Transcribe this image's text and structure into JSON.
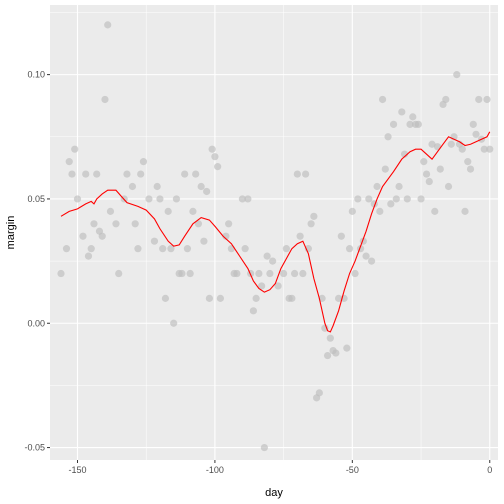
{
  "chart_data": {
    "type": "scatter",
    "title": "",
    "xlabel": "day",
    "ylabel": "margin",
    "xlim": [
      -160,
      3
    ],
    "ylim": [
      -0.055,
      0.128
    ],
    "x_ticks": [
      -150,
      -100,
      -50,
      0
    ],
    "x_tick_labels": [
      "-150",
      "-100",
      "-50",
      "0"
    ],
    "y_ticks": [
      -0.05,
      0.0,
      0.05,
      0.1
    ],
    "y_tick_labels": [
      "-0.05",
      "0.00",
      "0.05",
      "0.10"
    ],
    "grid": true,
    "legend": "none",
    "colors": {
      "panel": "#ebebeb",
      "grid_major": "#ffffff",
      "points": "#bdbdbd",
      "smooth_line": "#ff0000",
      "tick_text": "#4d4d4d",
      "axis_title": "#000000"
    },
    "series": [
      {
        "type": "scatter",
        "points": [
          [
            -156,
            0.02
          ],
          [
            -154,
            0.03
          ],
          [
            -153,
            0.065
          ],
          [
            -152,
            0.06
          ],
          [
            -151,
            0.07
          ],
          [
            -150,
            0.05
          ],
          [
            -148,
            0.035
          ],
          [
            -147,
            0.06
          ],
          [
            -146,
            0.027
          ],
          [
            -145,
            0.03
          ],
          [
            -144,
            0.04
          ],
          [
            -143,
            0.06
          ],
          [
            -142,
            0.037
          ],
          [
            -141,
            0.035
          ],
          [
            -140,
            0.09
          ],
          [
            -139,
            0.12
          ],
          [
            -138,
            0.045
          ],
          [
            -136,
            0.04
          ],
          [
            -135,
            0.02
          ],
          [
            -133,
            0.05
          ],
          [
            -132,
            0.06
          ],
          [
            -130,
            0.055
          ],
          [
            -129,
            0.04
          ],
          [
            -128,
            0.03
          ],
          [
            -127,
            0.06
          ],
          [
            -126,
            0.065
          ],
          [
            -124,
            0.05
          ],
          [
            -122,
            0.033
          ],
          [
            -121,
            0.055
          ],
          [
            -120,
            0.05
          ],
          [
            -119,
            0.03
          ],
          [
            -118,
            0.01
          ],
          [
            -117,
            0.045
          ],
          [
            -116,
            0.03
          ],
          [
            -115,
            0.0
          ],
          [
            -114,
            0.05
          ],
          [
            -113,
            0.02
          ],
          [
            -112,
            0.02
          ],
          [
            -111,
            0.06
          ],
          [
            -110,
            0.03
          ],
          [
            -109,
            0.02
          ],
          [
            -108,
            0.045
          ],
          [
            -107,
            0.06
          ],
          [
            -106,
            0.04
          ],
          [
            -105,
            0.055
          ],
          [
            -104,
            0.033
          ],
          [
            -103,
            0.053
          ],
          [
            -102,
            0.01
          ],
          [
            -101,
            0.07
          ],
          [
            -100,
            0.067
          ],
          [
            -99,
            0.063
          ],
          [
            -98,
            0.01
          ],
          [
            -96,
            0.035
          ],
          [
            -95,
            0.04
          ],
          [
            -94,
            0.03
          ],
          [
            -93,
            0.02
          ],
          [
            -92,
            0.02
          ],
          [
            -90,
            0.05
          ],
          [
            -89,
            0.03
          ],
          [
            -88,
            0.05
          ],
          [
            -87,
            0.02
          ],
          [
            -86,
            0.005
          ],
          [
            -85,
            0.01
          ],
          [
            -84,
            0.02
          ],
          [
            -83,
            0.015
          ],
          [
            -82,
            -0.05
          ],
          [
            -81,
            0.027
          ],
          [
            -80,
            0.02
          ],
          [
            -79,
            0.025
          ],
          [
            -77,
            0.015
          ],
          [
            -75,
            0.02
          ],
          [
            -74,
            0.03
          ],
          [
            -73,
            0.01
          ],
          [
            -72,
            0.01
          ],
          [
            -71,
            0.02
          ],
          [
            -70,
            0.06
          ],
          [
            -69,
            0.035
          ],
          [
            -68,
            0.02
          ],
          [
            -67,
            0.06
          ],
          [
            -66,
            0.03
          ],
          [
            -65,
            0.04
          ],
          [
            -64,
            0.043
          ],
          [
            -63,
            -0.03
          ],
          [
            -62,
            -0.028
          ],
          [
            -61,
            0.01
          ],
          [
            -60,
            -0.002
          ],
          [
            -59,
            -0.013
          ],
          [
            -58,
            -0.006
          ],
          [
            -57,
            -0.011
          ],
          [
            -56,
            -0.012
          ],
          [
            -55,
            0.01
          ],
          [
            -54,
            0.035
          ],
          [
            -53,
            0.01
          ],
          [
            -52,
            -0.01
          ],
          [
            -51,
            0.03
          ],
          [
            -50,
            0.045
          ],
          [
            -49,
            0.02
          ],
          [
            -48,
            0.05
          ],
          [
            -47,
            0.03
          ],
          [
            -46,
            0.033
          ],
          [
            -45,
            0.027
          ],
          [
            -44,
            0.05
          ],
          [
            -43,
            0.025
          ],
          [
            -42,
            0.048
          ],
          [
            -41,
            0.055
          ],
          [
            -40,
            0.045
          ],
          [
            -39,
            0.09
          ],
          [
            -38,
            0.062
          ],
          [
            -37,
            0.075
          ],
          [
            -36,
            0.048
          ],
          [
            -35,
            0.08
          ],
          [
            -34,
            0.05
          ],
          [
            -33,
            0.055
          ],
          [
            -32,
            0.085
          ],
          [
            -31,
            0.068
          ],
          [
            -30,
            0.05
          ],
          [
            -29,
            0.08
          ],
          [
            -28,
            0.083
          ],
          [
            -27,
            0.08
          ],
          [
            -26,
            0.08
          ],
          [
            -25,
            0.05
          ],
          [
            -24,
            0.065
          ],
          [
            -23,
            0.06
          ],
          [
            -22,
            0.057
          ],
          [
            -21,
            0.072
          ],
          [
            -20,
            0.045
          ],
          [
            -19,
            0.071
          ],
          [
            -18,
            0.062
          ],
          [
            -17,
            0.088
          ],
          [
            -16,
            0.09
          ],
          [
            -15,
            0.055
          ],
          [
            -14,
            0.072
          ],
          [
            -13,
            0.075
          ],
          [
            -12,
            0.1
          ],
          [
            -11,
            0.072
          ],
          [
            -10,
            0.07
          ],
          [
            -9,
            0.045
          ],
          [
            -8,
            0.065
          ],
          [
            -7,
            0.062
          ],
          [
            -6,
            0.08
          ],
          [
            -5,
            0.076
          ],
          [
            -4,
            0.09
          ],
          [
            -3,
            0.074
          ],
          [
            -2,
            0.07
          ],
          [
            -1,
            0.09
          ],
          [
            0,
            0.07
          ]
        ]
      },
      {
        "type": "line",
        "points": [
          [
            -156,
            0.043
          ],
          [
            -153,
            0.045
          ],
          [
            -150,
            0.046
          ],
          [
            -147,
            0.048
          ],
          [
            -145,
            0.049
          ],
          [
            -144,
            0.048
          ],
          [
            -143,
            0.05
          ],
          [
            -141,
            0.052
          ],
          [
            -139,
            0.0535
          ],
          [
            -136,
            0.0535
          ],
          [
            -134,
            0.051
          ],
          [
            -132,
            0.0485
          ],
          [
            -128,
            0.047
          ],
          [
            -125,
            0.0455
          ],
          [
            -122,
            0.042
          ],
          [
            -120,
            0.038
          ],
          [
            -117,
            0.033
          ],
          [
            -115,
            0.031
          ],
          [
            -113,
            0.0315
          ],
          [
            -111,
            0.035
          ],
          [
            -108,
            0.04
          ],
          [
            -105,
            0.0425
          ],
          [
            -102,
            0.0415
          ],
          [
            -100,
            0.039
          ],
          [
            -97,
            0.035
          ],
          [
            -94,
            0.032
          ],
          [
            -91,
            0.027
          ],
          [
            -88,
            0.022
          ],
          [
            -86,
            0.017
          ],
          [
            -84,
            0.014
          ],
          [
            -82,
            0.0125
          ],
          [
            -80,
            0.0135
          ],
          [
            -78,
            0.016
          ],
          [
            -76,
            0.022
          ],
          [
            -74,
            0.026
          ],
          [
            -72,
            0.03
          ],
          [
            -70,
            0.032
          ],
          [
            -68,
            0.033
          ],
          [
            -66,
            0.028
          ],
          [
            -64,
            0.018
          ],
          [
            -62,
            0.01
          ],
          [
            -60,
            0.0
          ],
          [
            -59,
            -0.003
          ],
          [
            -58,
            -0.0035
          ],
          [
            -57,
            -0.001
          ],
          [
            -55,
            0.005
          ],
          [
            -53,
            0.013
          ],
          [
            -51,
            0.02
          ],
          [
            -49,
            0.025
          ],
          [
            -47,
            0.031
          ],
          [
            -45,
            0.037
          ],
          [
            -43,
            0.044
          ],
          [
            -41,
            0.05
          ],
          [
            -39,
            0.055
          ],
          [
            -37,
            0.058
          ],
          [
            -35,
            0.061
          ],
          [
            -32,
            0.066
          ],
          [
            -29,
            0.069
          ],
          [
            -27,
            0.07
          ],
          [
            -25,
            0.07
          ],
          [
            -23,
            0.068
          ],
          [
            -21,
            0.066
          ],
          [
            -19,
            0.069
          ],
          [
            -17,
            0.072
          ],
          [
            -15,
            0.075
          ],
          [
            -13,
            0.074
          ],
          [
            -11,
            0.073
          ],
          [
            -9,
            0.0715
          ],
          [
            -7,
            0.072
          ],
          [
            -5,
            0.073
          ],
          [
            -3,
            0.074
          ],
          [
            -1,
            0.075
          ],
          [
            0,
            0.077
          ]
        ]
      }
    ]
  }
}
